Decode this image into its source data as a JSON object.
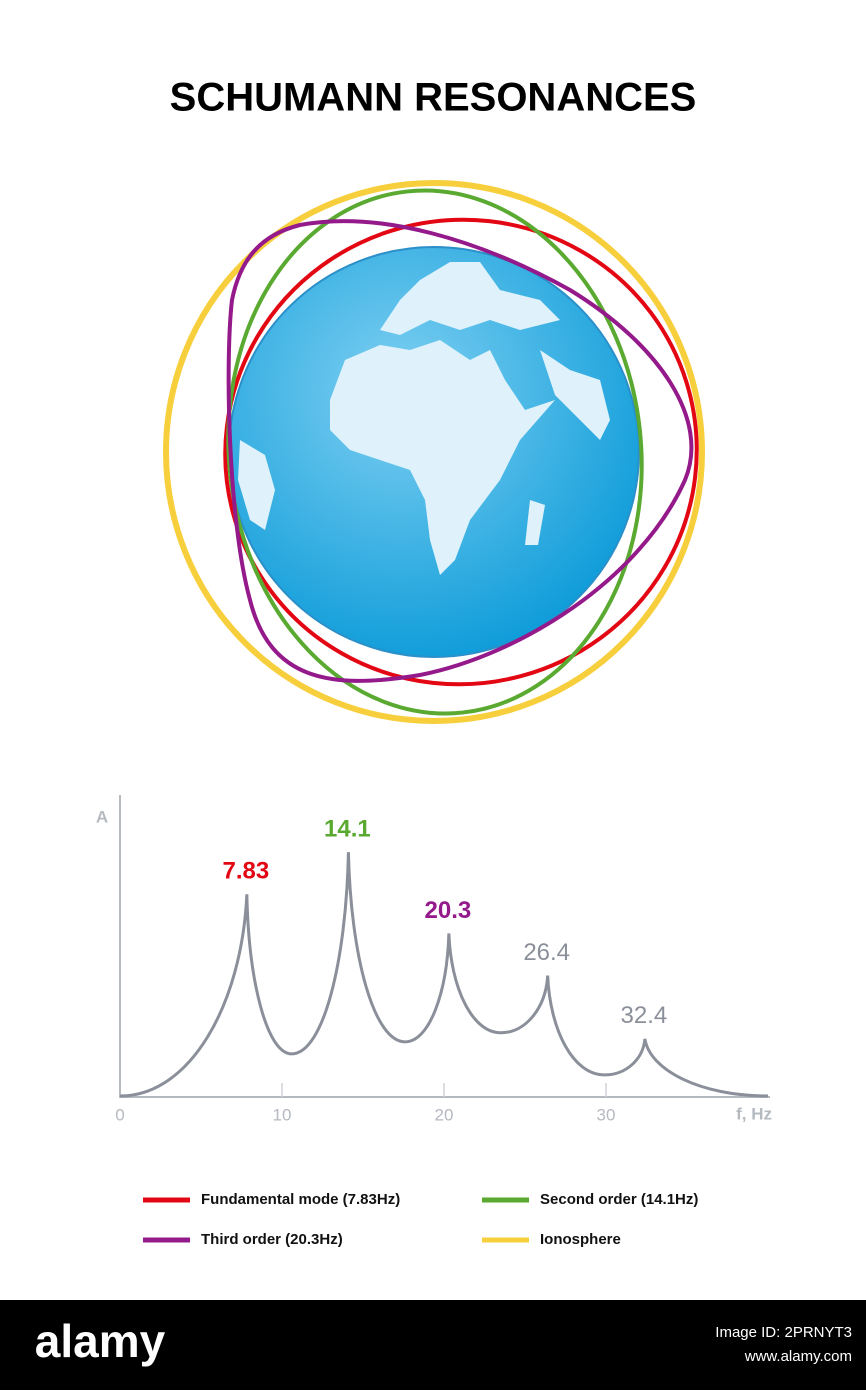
{
  "title": "SCHUMANN RESONANCES",
  "chart_data": {
    "type": "line",
    "y_label": "A",
    "x_label": "f, Hz",
    "x": [
      0,
      7.83,
      10.6,
      14.1,
      17.6,
      20.3,
      23.5,
      26.4,
      29.9,
      32.4,
      40
    ],
    "values": [
      0,
      67,
      14,
      81,
      18,
      54,
      21,
      40,
      7,
      19,
      0
    ],
    "color": "#8a8f99",
    "xlim": [
      0,
      40
    ],
    "ylim": [
      0,
      100
    ],
    "xticks": [
      0,
      10,
      20,
      30
    ],
    "annotations": [
      {
        "text": "7.83",
        "color": "#e30613",
        "bold": true
      },
      {
        "text": "14.1",
        "color": "#5aaa32",
        "bold": true
      },
      {
        "text": "20.3",
        "color": "#94198a",
        "bold": true
      },
      {
        "text": "26.4",
        "color": "#8a8f99",
        "bold": false
      },
      {
        "text": "32.4",
        "color": "#8a8f99",
        "bold": false
      }
    ]
  },
  "legend": [
    {
      "label": "Fundamental mode (7.83Hz)",
      "color": "#e30613"
    },
    {
      "label": "Second order (14.1Hz)",
      "color": "#5aaa32"
    },
    {
      "label": "Third order (20.3Hz)",
      "color": "#94198a"
    },
    {
      "label": "Ionosphere",
      "color": "#f7cf3c"
    }
  ],
  "footer": {
    "brand": "alamy",
    "image_id": "Image ID: 2PRNYT3",
    "url": "www.alamy.com"
  }
}
